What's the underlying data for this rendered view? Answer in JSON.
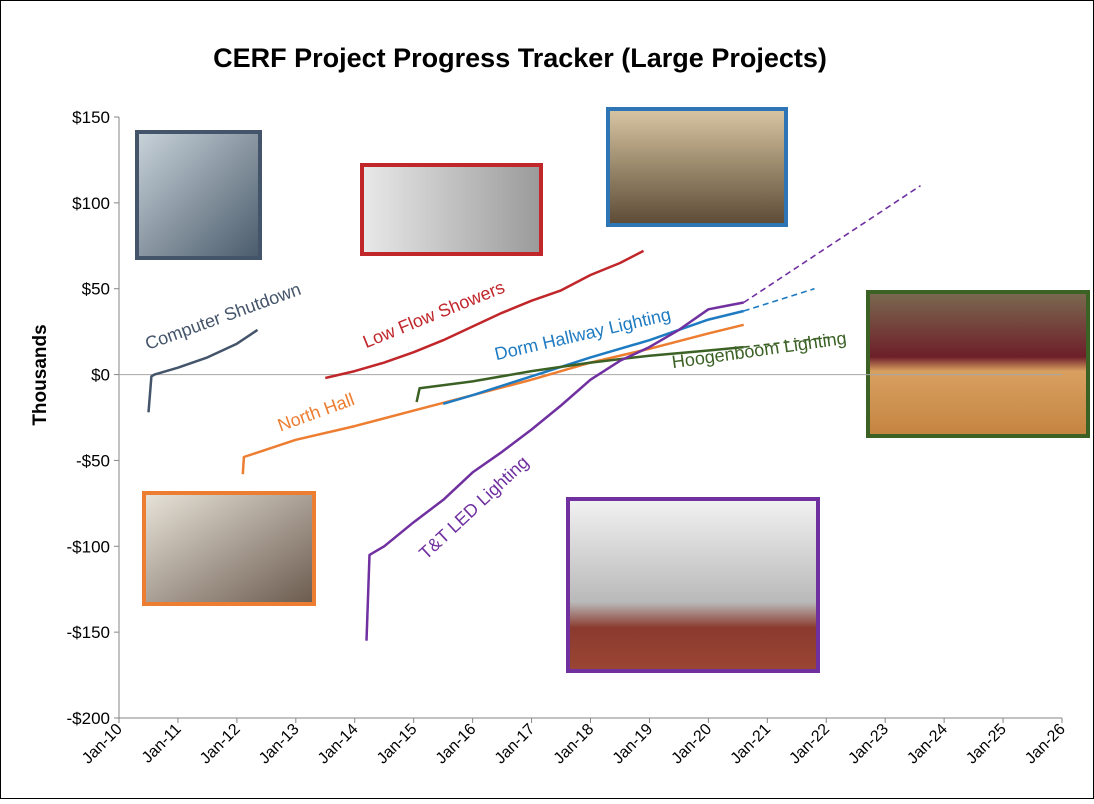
{
  "chart_data": {
    "type": "line",
    "title": "CERF Project Progress Tracker (Large Projects)",
    "y_label": "Thousands",
    "xlim": [
      2010,
      2026
    ],
    "xticks": [
      {
        "value": 2010,
        "label": "Jan-10"
      },
      {
        "value": 2011,
        "label": "Jan-11"
      },
      {
        "value": 2012,
        "label": "Jan-12"
      },
      {
        "value": 2013,
        "label": "Jan-13"
      },
      {
        "value": 2014,
        "label": "Jan-14"
      },
      {
        "value": 2015,
        "label": "Jan-15"
      },
      {
        "value": 2016,
        "label": "Jan-16"
      },
      {
        "value": 2017,
        "label": "Jan-17"
      },
      {
        "value": 2018,
        "label": "Jan-18"
      },
      {
        "value": 2019,
        "label": "Jan-19"
      },
      {
        "value": 2020,
        "label": "Jan-20"
      },
      {
        "value": 2021,
        "label": "Jan-21"
      },
      {
        "value": 2022,
        "label": "Jan-22"
      },
      {
        "value": 2023,
        "label": "Jan-23"
      },
      {
        "value": 2024,
        "label": "Jan-24"
      },
      {
        "value": 2025,
        "label": "Jan-25"
      },
      {
        "value": 2026,
        "label": "Jan-26"
      }
    ],
    "ylim": [
      -200,
      150
    ],
    "yticks": [
      {
        "value": -200,
        "label": "-$200"
      },
      {
        "value": -150,
        "label": "-$150"
      },
      {
        "value": -100,
        "label": "-$100"
      },
      {
        "value": -50,
        "label": "-$50"
      },
      {
        "value": 0,
        "label": "$0"
      },
      {
        "value": 50,
        "label": "$50"
      },
      {
        "value": 100,
        "label": "$100"
      },
      {
        "value": 150,
        "label": "$150"
      }
    ],
    "series": [
      {
        "name": "Computer Shutdown",
        "color": "#44546a",
        "x": [
          2010.5,
          2010.55,
          2010.6,
          2011.0,
          2011.5,
          2012.0,
          2012.35
        ],
        "values": [
          -22,
          -1,
          0,
          4,
          10,
          18,
          26
        ]
      },
      {
        "name": "Low Flow Showers",
        "color": "#c0262a",
        "x": [
          2013.5,
          2014,
          2014.5,
          2015,
          2015.5,
          2016,
          2016.5,
          2017,
          2017.5,
          2018,
          2018.5,
          2018.9
        ],
        "values": [
          -2,
          2,
          7,
          13,
          20,
          28,
          36,
          43,
          49,
          58,
          65,
          72
        ]
      },
      {
        "name": "North Hall",
        "color": "#ed7d31",
        "x": [
          2012.1,
          2012.12,
          2013,
          2014,
          2015,
          2016,
          2017,
          2018,
          2019,
          2020,
          2020.6
        ],
        "values": [
          -58,
          -48,
          -38,
          -30,
          -21,
          -12,
          -3,
          7,
          15,
          24,
          29
        ]
      },
      {
        "name": "Dorm Hallway Lighting",
        "color": "#1f7bc1",
        "x": [
          2015.5,
          2016,
          2017,
          2018,
          2019,
          2020,
          2020.6
        ],
        "values": [
          -17,
          -12,
          -1,
          10,
          20,
          32,
          37
        ],
        "projection": {
          "x": [
            2020.6,
            2021.8
          ],
          "values": [
            37,
            50
          ]
        }
      },
      {
        "name": "Hoogenboom Lighting",
        "color": "#3b6125",
        "x": [
          2015.05,
          2015.1,
          2016,
          2017,
          2018,
          2019,
          2020,
          2020.6
        ],
        "values": [
          -16,
          -8,
          -4,
          2,
          7,
          11,
          14,
          16
        ],
        "projection": {
          "x": [
            2020.6,
            2022.1
          ],
          "values": [
            16,
            22
          ]
        }
      },
      {
        "name": "T&T LED Lighting",
        "color": "#7030a0",
        "x": [
          2014.2,
          2014.25,
          2014.5,
          2015,
          2015.5,
          2016,
          2016.5,
          2017,
          2017.5,
          2018,
          2018.5,
          2019,
          2019.5,
          2020,
          2020.3,
          2020.6
        ],
        "values": [
          -155,
          -105,
          -100,
          -86,
          -73,
          -57,
          -45,
          -32,
          -18,
          -3,
          8,
          16,
          26,
          38,
          40,
          42
        ],
        "projection": {
          "x": [
            2020.6,
            2023.6
          ],
          "values": [
            42,
            110
          ]
        }
      }
    ]
  }
}
